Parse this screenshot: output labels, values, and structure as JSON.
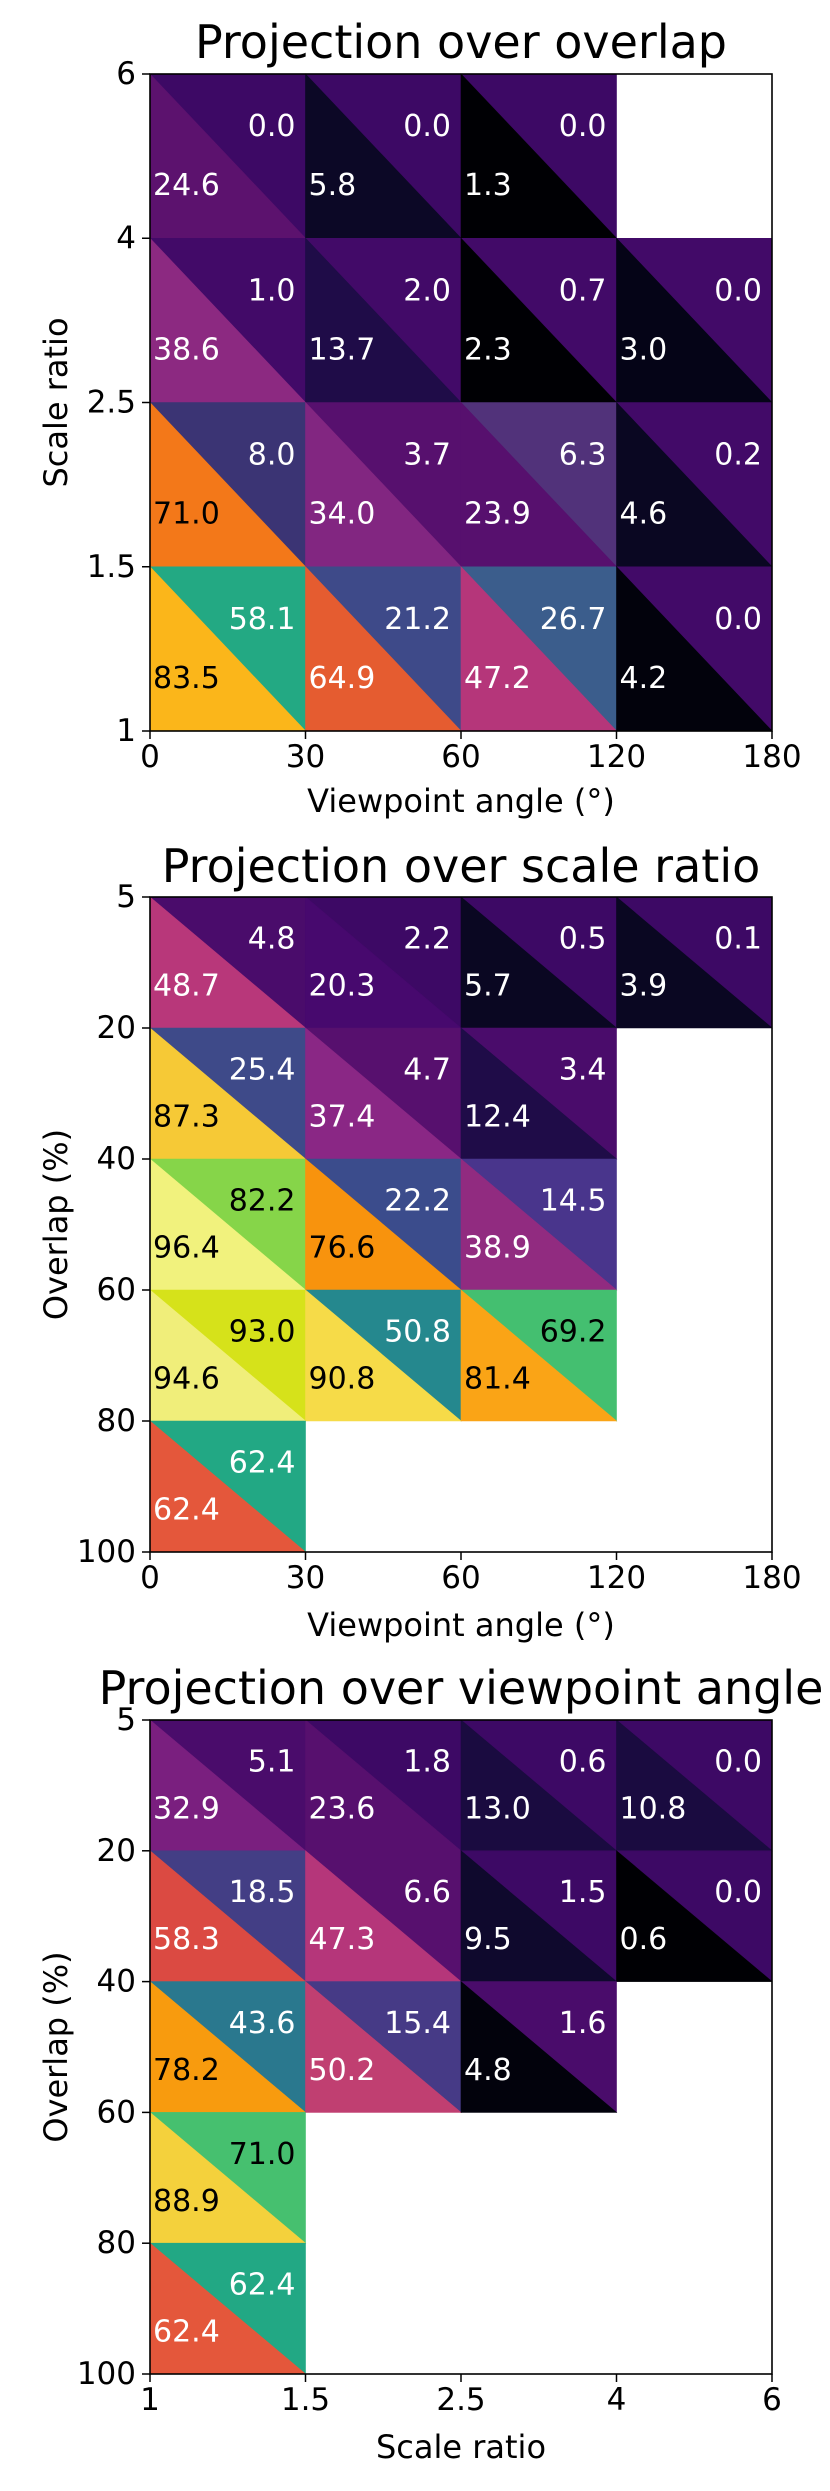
{
  "chart_data": [
    {
      "type": "heatmap",
      "title": "Projection over overlap",
      "xlabel": "Viewpoint angle (°)",
      "ylabel": "Scale ratio",
      "x_bins": [
        "0",
        "30",
        "60",
        "120",
        "180"
      ],
      "y_bins": [
        "6",
        "4",
        "2.5",
        "1.5",
        "1"
      ],
      "cells": [
        {
          "row": 0,
          "col": 0,
          "upper": "0.0",
          "lower": "24.6",
          "upper_color": "#3d0965",
          "lower_color": "#5c126e"
        },
        {
          "row": 0,
          "col": 1,
          "upper": "0.0",
          "lower": "5.8",
          "upper_color": "#3d0965",
          "lower_color": "#0c0826"
        },
        {
          "row": 0,
          "col": 2,
          "upper": "0.0",
          "lower": "1.3",
          "upper_color": "#3d0965",
          "lower_color": "#000004"
        },
        {
          "row": 1,
          "col": 0,
          "upper": "1.0",
          "lower": "38.6",
          "upper_color": "#420a68",
          "lower_color": "#8c2981"
        },
        {
          "row": 1,
          "col": 1,
          "upper": "2.0",
          "lower": "13.7",
          "upper_color": "#420a68",
          "lower_color": "#1f0c48"
        },
        {
          "row": 1,
          "col": 2,
          "upper": "0.7",
          "lower": "2.3",
          "upper_color": "#420a68",
          "lower_color": "#000004"
        },
        {
          "row": 1,
          "col": 3,
          "upper": "0.0",
          "lower": "3.0",
          "upper_color": "#420a68",
          "lower_color": "#050417"
        },
        {
          "row": 2,
          "col": 0,
          "upper": "8.0",
          "lower": "71.0",
          "upper_color": "#3b3474",
          "lower_color": "#f37819"
        },
        {
          "row": 2,
          "col": 1,
          "upper": "3.7",
          "lower": "34.0",
          "upper_color": "#57106e",
          "lower_color": "#822681"
        },
        {
          "row": 2,
          "col": 2,
          "upper": "6.3",
          "lower": "23.9",
          "upper_color": "#51327a",
          "lower_color": "#57106e"
        },
        {
          "row": 2,
          "col": 3,
          "upper": "0.2",
          "lower": "4.6",
          "upper_color": "#420a68",
          "lower_color": "#0a0722"
        },
        {
          "row": 3,
          "col": 0,
          "upper": "58.1",
          "lower": "83.5",
          "upper_color": "#23a983",
          "lower_color": "#fbb61a"
        },
        {
          "row": 3,
          "col": 1,
          "upper": "21.2",
          "lower": "64.9",
          "upper_color": "#3e4a89",
          "lower_color": "#e55c30"
        },
        {
          "row": 3,
          "col": 2,
          "upper": "26.7",
          "lower": "47.2",
          "upper_color": "#3b5d8c",
          "lower_color": "#b5367a"
        },
        {
          "row": 3,
          "col": 3,
          "upper": "0.0",
          "lower": "4.2",
          "upper_color": "#420a68",
          "lower_color": "#02020c"
        }
      ]
    },
    {
      "type": "heatmap",
      "title": "Projection over scale ratio",
      "xlabel": "Viewpoint angle (°)",
      "ylabel": "Overlap (%)",
      "x_bins": [
        "0",
        "30",
        "60",
        "120",
        "180"
      ],
      "y_bins": [
        "5",
        "20",
        "40",
        "60",
        "80",
        "100"
      ],
      "cells": [
        {
          "row": 0,
          "col": 0,
          "upper": "4.8",
          "lower": "48.7",
          "upper_color": "#4a0c6b",
          "lower_color": "#b8377a"
        },
        {
          "row": 0,
          "col": 1,
          "upper": "2.2",
          "lower": "20.3",
          "upper_color": "#3d0965",
          "lower_color": "#47096e"
        },
        {
          "row": 0,
          "col": 2,
          "upper": "0.5",
          "lower": "5.7",
          "upper_color": "#3d0965",
          "lower_color": "#0a0722"
        },
        {
          "row": 0,
          "col": 3,
          "upper": "0.1",
          "lower": "3.9",
          "upper_color": "#3d0965",
          "lower_color": "#0a0722"
        },
        {
          "row": 1,
          "col": 0,
          "upper": "25.4",
          "lower": "87.3",
          "upper_color": "#3e4a89",
          "lower_color": "#f6c936"
        },
        {
          "row": 1,
          "col": 1,
          "upper": "4.7",
          "lower": "37.4",
          "upper_color": "#57106e",
          "lower_color": "#8a2785"
        },
        {
          "row": 1,
          "col": 2,
          "upper": "3.4",
          "lower": "12.4",
          "upper_color": "#4a0c6b",
          "lower_color": "#1f0c48"
        },
        {
          "row": 2,
          "col": 0,
          "upper": "82.2",
          "lower": "96.4",
          "upper_color": "#86d549",
          "lower_color": "#f1f27d"
        },
        {
          "row": 2,
          "col": 1,
          "upper": "22.2",
          "lower": "76.6",
          "upper_color": "#3b4c8c",
          "lower_color": "#f8930d"
        },
        {
          "row": 2,
          "col": 2,
          "upper": "14.5",
          "lower": "38.9",
          "upper_color": "#49358c",
          "lower_color": "#912b80"
        },
        {
          "row": 3,
          "col": 0,
          "upper": "93.0",
          "lower": "94.6",
          "upper_color": "#d6e21a",
          "lower_color": "#f0ee7a"
        },
        {
          "row": 3,
          "col": 1,
          "upper": "50.8",
          "lower": "90.8",
          "upper_color": "#25888e",
          "lower_color": "#f6db48"
        },
        {
          "row": 3,
          "col": 2,
          "upper": "69.2",
          "lower": "81.4",
          "upper_color": "#44bf70",
          "lower_color": "#faa416"
        },
        {
          "row": 4,
          "col": 0,
          "upper": "62.4",
          "lower": "62.4",
          "upper_color": "#22a884",
          "lower_color": "#e4573b"
        }
      ]
    },
    {
      "type": "heatmap",
      "title": "Projection over viewpoint angle",
      "xlabel": "Scale ratio",
      "ylabel": "Overlap (%)",
      "x_bins": [
        "1",
        "1.5",
        "2.5",
        "4",
        "6"
      ],
      "y_bins": [
        "5",
        "20",
        "40",
        "60",
        "80",
        "100"
      ],
      "cells": [
        {
          "row": 0,
          "col": 0,
          "upper": "5.1",
          "lower": "32.9",
          "upper_color": "#4a0c6b",
          "lower_color": "#7a1f7f"
        },
        {
          "row": 0,
          "col": 1,
          "upper": "1.8",
          "lower": "23.6",
          "upper_color": "#3d0965",
          "lower_color": "#57106e"
        },
        {
          "row": 0,
          "col": 2,
          "upper": "0.6",
          "lower": "13.0",
          "upper_color": "#3d0965",
          "lower_color": "#1a0b40"
        },
        {
          "row": 0,
          "col": 3,
          "upper": "0.0",
          "lower": "10.8",
          "upper_color": "#3d0965",
          "lower_color": "#1a0b40"
        },
        {
          "row": 1,
          "col": 0,
          "upper": "18.5",
          "lower": "58.3",
          "upper_color": "#433e85",
          "lower_color": "#db4a42"
        },
        {
          "row": 1,
          "col": 1,
          "upper": "6.6",
          "lower": "47.3",
          "upper_color": "#57106e",
          "lower_color": "#b5367a"
        },
        {
          "row": 1,
          "col": 2,
          "upper": "1.5",
          "lower": "9.5",
          "upper_color": "#3d0965",
          "lower_color": "#0f092d"
        },
        {
          "row": 1,
          "col": 3,
          "upper": "0.0",
          "lower": "0.6",
          "upper_color": "#3d0965",
          "lower_color": "#000004"
        },
        {
          "row": 2,
          "col": 0,
          "upper": "43.6",
          "lower": "78.2",
          "upper_color": "#2a788e",
          "lower_color": "#f89b0e"
        },
        {
          "row": 2,
          "col": 1,
          "upper": "15.4",
          "lower": "50.2",
          "upper_color": "#463a86",
          "lower_color": "#c03f71"
        },
        {
          "row": 2,
          "col": 2,
          "upper": "1.6",
          "lower": "4.8",
          "upper_color": "#4a0c6b",
          "lower_color": "#02020c"
        },
        {
          "row": 3,
          "col": 0,
          "upper": "71.0",
          "lower": "88.9",
          "upper_color": "#46c06f",
          "lower_color": "#f4d13c"
        },
        {
          "row": 4,
          "col": 0,
          "upper": "62.4",
          "lower": "62.4",
          "upper_color": "#22a884",
          "lower_color": "#e4573b"
        }
      ]
    }
  ]
}
